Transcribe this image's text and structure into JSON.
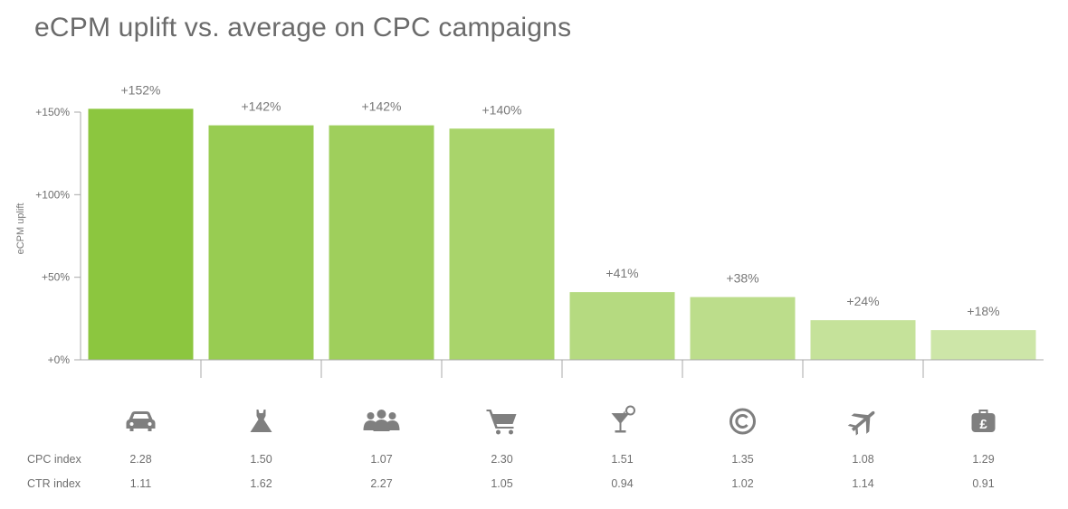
{
  "chart_data": {
    "type": "bar",
    "title": "eCPM uplift vs. average on CPC campaigns",
    "ylabel": "eCPM uplift",
    "xlabel": "",
    "ylim": [
      0,
      150
    ],
    "yticks": [
      0,
      50,
      100,
      150
    ],
    "ytick_labels": [
      "+0%",
      "+50%",
      "+100%",
      "+150%"
    ],
    "grid": false,
    "legend": "none",
    "categories": [
      "car-icon",
      "dress-icon",
      "people-icon",
      "shopping-cart-icon",
      "cocktail-icon",
      "copyright-icon",
      "airplane-icon",
      "money-bag-icon"
    ],
    "values": [
      152,
      142,
      142,
      140,
      41,
      38,
      24,
      18
    ],
    "data_labels": [
      "+152%",
      "+142%",
      "+142%",
      "+140%",
      "+41%",
      "+38%",
      "+24%",
      "+18%"
    ],
    "bar_colors": [
      "#8cc63f",
      "#98cc52",
      "#9fcf5c",
      "#a9d46b",
      "#b5da80",
      "#bcdd8b",
      "#c5e29a",
      "#cde6a8"
    ],
    "rows": [
      {
        "label": "CPC index",
        "values": [
          "2.28",
          "1.50",
          "1.07",
          "2.30",
          "1.51",
          "1.35",
          "1.08",
          "1.29"
        ]
      },
      {
        "label": "CTR index",
        "values": [
          "1.11",
          "1.62",
          "2.27",
          "1.05",
          "0.94",
          "1.02",
          "1.14",
          "0.91"
        ]
      }
    ]
  }
}
